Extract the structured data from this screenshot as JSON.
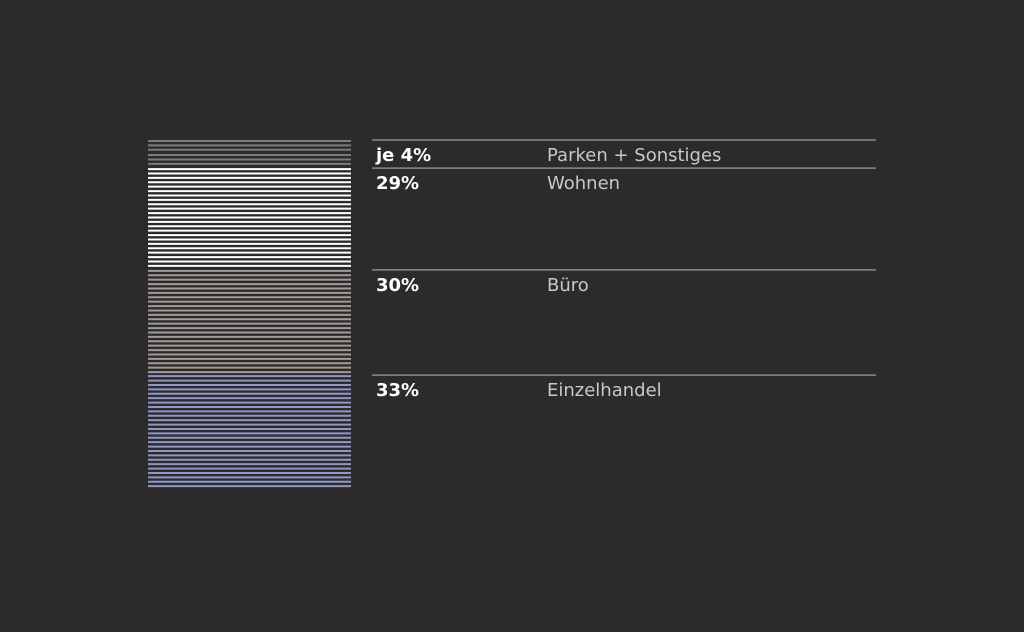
{
  "chart_data": {
    "type": "bar",
    "subtype": "stacked-striped-column",
    "title": "",
    "xlabel": "",
    "ylabel": "",
    "ylim": [
      0,
      100
    ],
    "grid": false,
    "segments": [
      {
        "label": "Parken + Sonstiges",
        "value_label": "je 4%",
        "value": 4,
        "color": "#7b7b7b"
      },
      {
        "label": "Parken + Sonstiges",
        "value": 4,
        "color": "#7b7b7b"
      },
      {
        "label": "Wohnen",
        "value_label": "29%",
        "value": 29,
        "color": "#ffffff"
      },
      {
        "label": "Büro",
        "value_label": "30%",
        "value": 30,
        "color": "#a09d98"
      },
      {
        "label": "Einzelhandel",
        "value_label": "33%",
        "value": 33,
        "color": "#8f97c8"
      }
    ]
  },
  "colors": {
    "background": "#2c2a2b",
    "divider": "#8a8a8a",
    "percent_text": "#ffffff",
    "category_text": "#c8c8c8"
  }
}
